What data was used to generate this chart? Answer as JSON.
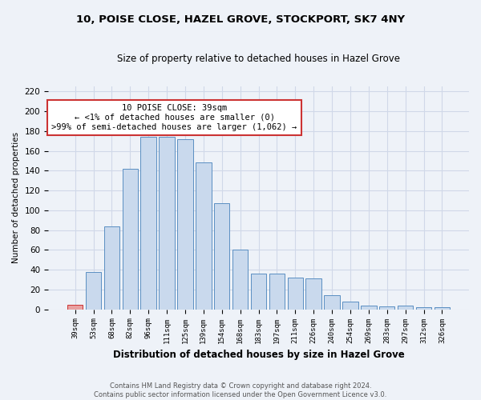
{
  "title1": "10, POISE CLOSE, HAZEL GROVE, STOCKPORT, SK7 4NY",
  "title2": "Size of property relative to detached houses in Hazel Grove",
  "xlabel": "Distribution of detached houses by size in Hazel Grove",
  "ylabel": "Number of detached properties",
  "categories": [
    "39sqm",
    "53sqm",
    "68sqm",
    "82sqm",
    "96sqm",
    "111sqm",
    "125sqm",
    "139sqm",
    "154sqm",
    "168sqm",
    "183sqm",
    "197sqm",
    "211sqm",
    "226sqm",
    "240sqm",
    "254sqm",
    "269sqm",
    "283sqm",
    "297sqm",
    "312sqm",
    "326sqm"
  ],
  "values": [
    5,
    38,
    84,
    142,
    174,
    174,
    172,
    148,
    107,
    60,
    36,
    36,
    32,
    31,
    14,
    8,
    4,
    3,
    4,
    2,
    2
  ],
  "bar_color": "#c9d9ed",
  "bar_edge_color": "#5a8fc2",
  "highlight_bar_index": 0,
  "highlight_bar_color": "#e8a0a0",
  "highlight_bar_edge_color": "#cc3333",
  "annotation_text": "10 POISE CLOSE: 39sqm\n← <1% of detached houses are smaller (0)\n>99% of semi-detached houses are larger (1,062) →",
  "annotation_box_color": "#ffffff",
  "annotation_box_edge_color": "#cc3333",
  "grid_color": "#d0d8e8",
  "bg_color": "#eef2f8",
  "ylim": [
    0,
    225
  ],
  "yticks": [
    0,
    20,
    40,
    60,
    80,
    100,
    120,
    140,
    160,
    180,
    200,
    220
  ],
  "footer1": "Contains HM Land Registry data © Crown copyright and database right 2024.",
  "footer2": "Contains public sector information licensed under the Open Government Licence v3.0."
}
